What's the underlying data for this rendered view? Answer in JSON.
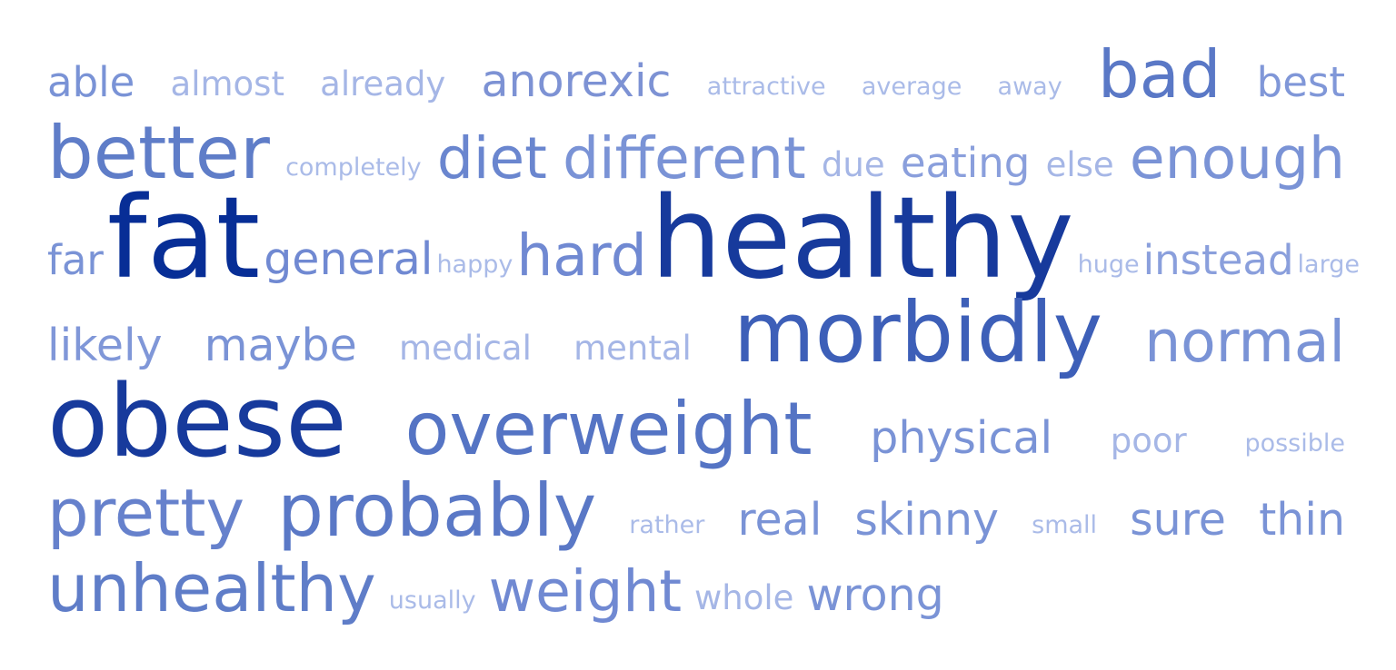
{
  "word_cloud": {
    "words": [
      {
        "text": "able",
        "weight": 3,
        "color": "#7a93d6"
      },
      {
        "text": "almost",
        "weight": 2,
        "color": "#a5b6e6"
      },
      {
        "text": "already",
        "weight": 2,
        "color": "#a5b6e6"
      },
      {
        "text": "anorexic",
        "weight": 4,
        "color": "#7d92d4"
      },
      {
        "text": "attractive",
        "weight": 1,
        "color": "#aabbe8"
      },
      {
        "text": "average",
        "weight": 1,
        "color": "#aabbe8"
      },
      {
        "text": "away",
        "weight": 1,
        "color": "#aabbe8"
      },
      {
        "text": "bad",
        "weight": 6,
        "color": "#5a78c6"
      },
      {
        "text": "best",
        "weight": 3,
        "color": "#8097d8"
      },
      {
        "text": "better",
        "weight": 7,
        "color": "#5f7dc8"
      },
      {
        "text": "completely",
        "weight": 1,
        "color": "#aabbe8"
      },
      {
        "text": "diet",
        "weight": 5,
        "color": "#6a86cf"
      },
      {
        "text": "different",
        "weight": 5,
        "color": "#7a93d6"
      },
      {
        "text": "due",
        "weight": 2,
        "color": "#a5b6e6"
      },
      {
        "text": "eating",
        "weight": 3,
        "color": "#8a9fdc"
      },
      {
        "text": "else",
        "weight": 2,
        "color": "#a5b6e6"
      },
      {
        "text": "enough",
        "weight": 5,
        "color": "#7a93d6"
      },
      {
        "text": "far",
        "weight": 3,
        "color": "#7a93d6"
      },
      {
        "text": "fat",
        "weight": 10,
        "color": "#072e96"
      },
      {
        "text": "general",
        "weight": 4,
        "color": "#7089d2"
      },
      {
        "text": "happy",
        "weight": 1,
        "color": "#aabbe8"
      },
      {
        "text": "hard",
        "weight": 5,
        "color": "#7089d2"
      },
      {
        "text": "healthy",
        "weight": 10,
        "color": "#173a9c"
      },
      {
        "text": "huge",
        "weight": 1,
        "color": "#aabbe8"
      },
      {
        "text": "instead",
        "weight": 3,
        "color": "#8a9fdc"
      },
      {
        "text": "large",
        "weight": 1,
        "color": "#aabbe8"
      },
      {
        "text": "likely",
        "weight": 4,
        "color": "#8097d8"
      },
      {
        "text": "maybe",
        "weight": 4,
        "color": "#7a93d6"
      },
      {
        "text": "medical",
        "weight": 2,
        "color": "#a5b6e6"
      },
      {
        "text": "mental",
        "weight": 2,
        "color": "#a5b6e6"
      },
      {
        "text": "morbidly",
        "weight": 8,
        "color": "#3d5fb8"
      },
      {
        "text": "normal",
        "weight": 5,
        "color": "#7a93d6"
      },
      {
        "text": "obese",
        "weight": 9,
        "color": "#173a9c"
      },
      {
        "text": "overweight",
        "weight": 7,
        "color": "#5574c4"
      },
      {
        "text": "physical",
        "weight": 4,
        "color": "#7a93d6"
      },
      {
        "text": "poor",
        "weight": 2,
        "color": "#a5b6e6"
      },
      {
        "text": "possible",
        "weight": 1,
        "color": "#aabbe8"
      },
      {
        "text": "pretty",
        "weight": 6,
        "color": "#6681cc"
      },
      {
        "text": "probably",
        "weight": 7,
        "color": "#5a78c6"
      },
      {
        "text": "rather",
        "weight": 1,
        "color": "#aabbe8"
      },
      {
        "text": "real",
        "weight": 4,
        "color": "#7a93d6"
      },
      {
        "text": "skinny",
        "weight": 4,
        "color": "#7a93d6"
      },
      {
        "text": "small",
        "weight": 1,
        "color": "#aabbe8"
      },
      {
        "text": "sure",
        "weight": 4,
        "color": "#7a93d6"
      },
      {
        "text": "thin",
        "weight": 4,
        "color": "#7a93d6"
      },
      {
        "text": "unhealthy",
        "weight": 6,
        "color": "#5f7dc8"
      },
      {
        "text": "usually",
        "weight": 1,
        "color": "#aabbe8"
      },
      {
        "text": "weight",
        "weight": 5,
        "color": "#7089d2"
      },
      {
        "text": "whole",
        "weight": 2,
        "color": "#a5b6e6"
      },
      {
        "text": "wrong",
        "weight": 4,
        "color": "#7a93d6"
      }
    ]
  }
}
